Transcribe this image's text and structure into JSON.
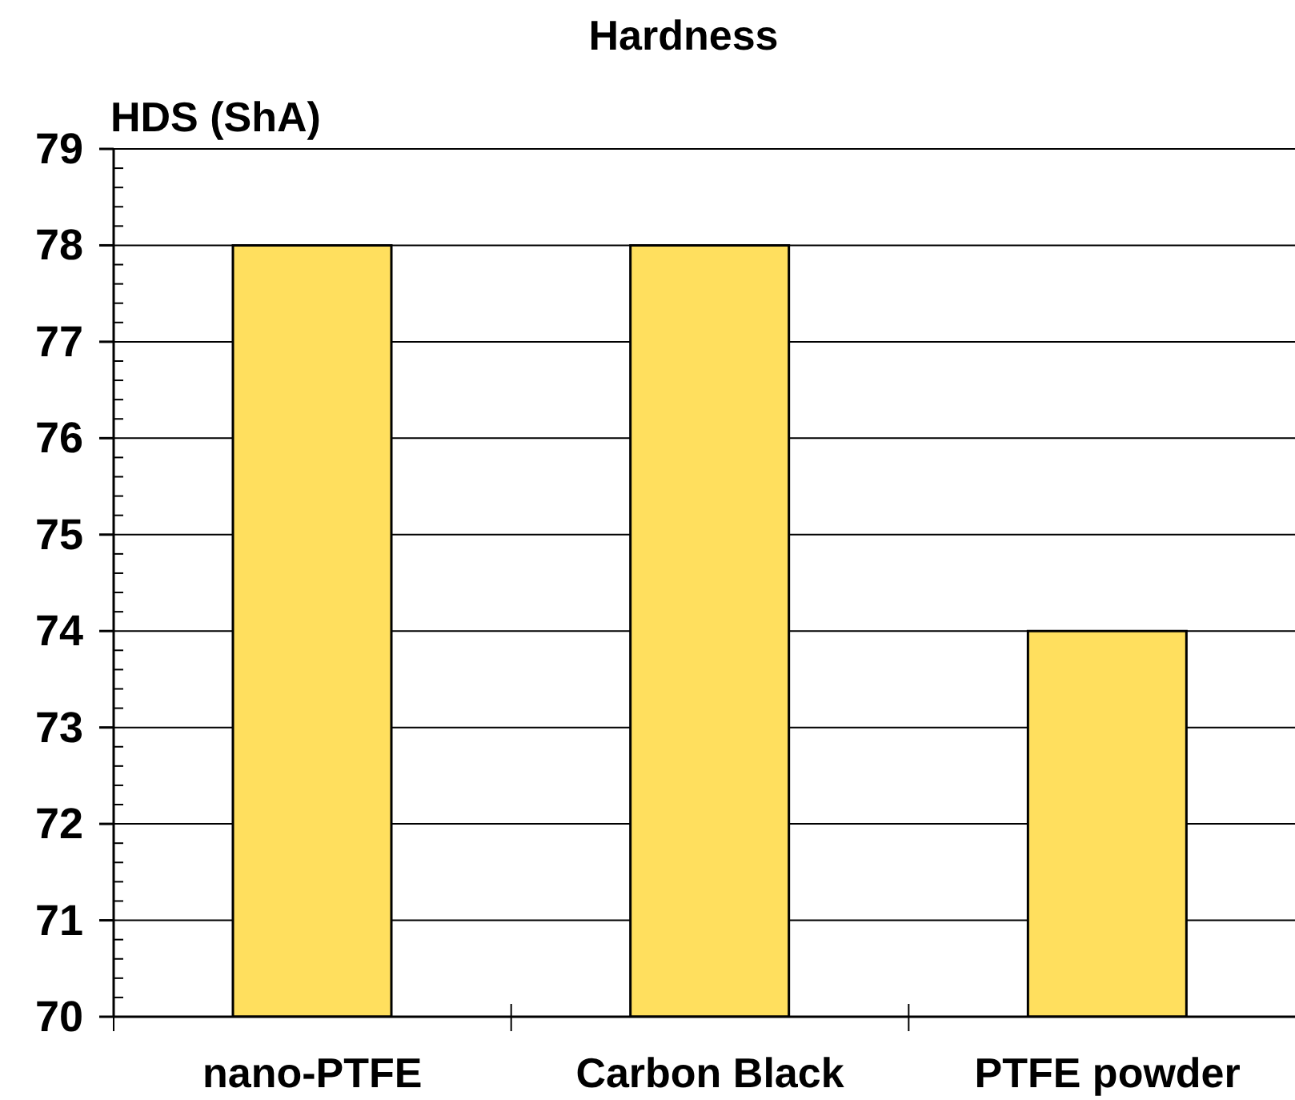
{
  "chart_data": {
    "type": "bar",
    "title": "Hardness",
    "ylabel": "HDS (ShA)",
    "categories": [
      "nano-PTFE",
      "Carbon Black",
      "PTFE powder"
    ],
    "values": [
      78,
      78,
      74
    ],
    "color": "#ffdf5e",
    "ylim": [
      70,
      79
    ],
    "yticks": [
      70,
      {
        "value": 70.2,
        "label": null
      },
      {
        "value": 70.4,
        "label": null
      },
      {
        "value": 70.6,
        "label": null
      },
      {
        "value": 70.8,
        "label": null
      },
      71,
      {
        "value": 71.2,
        "label": null
      },
      {
        "value": 71.4,
        "label": null
      },
      {
        "value": 71.6,
        "label": null
      },
      {
        "value": 71.8,
        "label": null
      },
      72,
      {
        "value": 72.2,
        "label": null
      },
      {
        "value": 72.4,
        "label": null
      },
      {
        "value": 72.6,
        "label": null
      },
      {
        "value": 72.8,
        "label": null
      },
      73,
      {
        "value": 73.2,
        "label": null
      },
      {
        "value": 73.4,
        "label": null
      },
      {
        "value": 73.6,
        "label": null
      },
      {
        "value": 73.8,
        "label": null
      },
      74,
      {
        "value": 74.2,
        "label": null
      },
      {
        "value": 74.4,
        "label": null
      },
      {
        "value": 74.6,
        "label": null
      },
      {
        "value": 74.8,
        "label": null
      },
      75,
      {
        "value": 75.2,
        "label": null
      },
      {
        "value": 75.4,
        "label": null
      },
      {
        "value": 75.6,
        "label": null
      },
      {
        "value": 75.8,
        "label": null
      },
      76,
      {
        "value": 76.2,
        "label": null
      },
      {
        "value": 76.4,
        "label": null
      },
      {
        "value": 76.6,
        "label": null
      },
      {
        "value": 76.8,
        "label": null
      },
      77,
      {
        "value": 77.2,
        "label": null
      },
      {
        "value": 77.4,
        "label": null
      },
      {
        "value": 77.6,
        "label": null
      },
      {
        "value": 77.8,
        "label": null
      },
      78,
      {
        "value": 78.2,
        "label": null
      },
      {
        "value": 78.4,
        "label": null
      },
      {
        "value": 78.6,
        "label": null
      },
      {
        "value": 78.8,
        "label": null
      },
      79
    ],
    "grid": "y"
  }
}
